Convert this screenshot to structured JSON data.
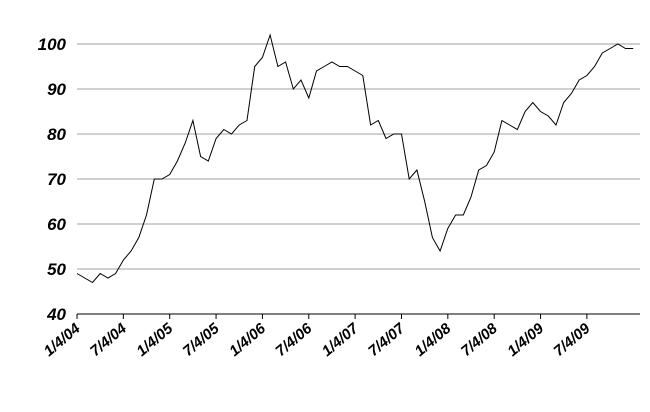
{
  "chart_data": {
    "type": "line",
    "categories": [
      "1/4/04",
      null,
      null,
      null,
      null,
      null,
      "7/4/04",
      null,
      null,
      null,
      null,
      null,
      "1/4/05",
      null,
      null,
      null,
      null,
      null,
      "7/4/05",
      null,
      null,
      null,
      null,
      null,
      "1/4/06",
      null,
      null,
      null,
      null,
      null,
      "7/4/06",
      null,
      null,
      null,
      null,
      null,
      "1/4/07",
      null,
      null,
      null,
      null,
      null,
      "7/4/07",
      null,
      null,
      null,
      null,
      null,
      "1/4/08",
      null,
      null,
      null,
      null,
      null,
      "7/4/08",
      null,
      null,
      null,
      null,
      null,
      "1/4/09",
      null,
      null,
      null,
      null,
      null,
      "7/4/09",
      null,
      null,
      null,
      null,
      null,
      null
    ],
    "series": [
      {
        "color": "#000000",
        "values": [
          49,
          48,
          47,
          49,
          48,
          49,
          52,
          54,
          57,
          62,
          70,
          70,
          71,
          74,
          78,
          83,
          75,
          74,
          79,
          81,
          80,
          82,
          83,
          95,
          97,
          102,
          95,
          96,
          90,
          92,
          88,
          94,
          95,
          96,
          95,
          95,
          94,
          93,
          82,
          83,
          79,
          80,
          80,
          70,
          72,
          65,
          57,
          54,
          59,
          62,
          62,
          66,
          72,
          73,
          76,
          83,
          82,
          81,
          85,
          87,
          85,
          84,
          82,
          87,
          89,
          92,
          93,
          95,
          98,
          99,
          100,
          99,
          99
        ]
      }
    ],
    "ylim": [
      40,
      100
    ],
    "yticks": [
      40,
      50,
      60,
      70,
      80,
      90,
      100
    ],
    "grid": true
  }
}
